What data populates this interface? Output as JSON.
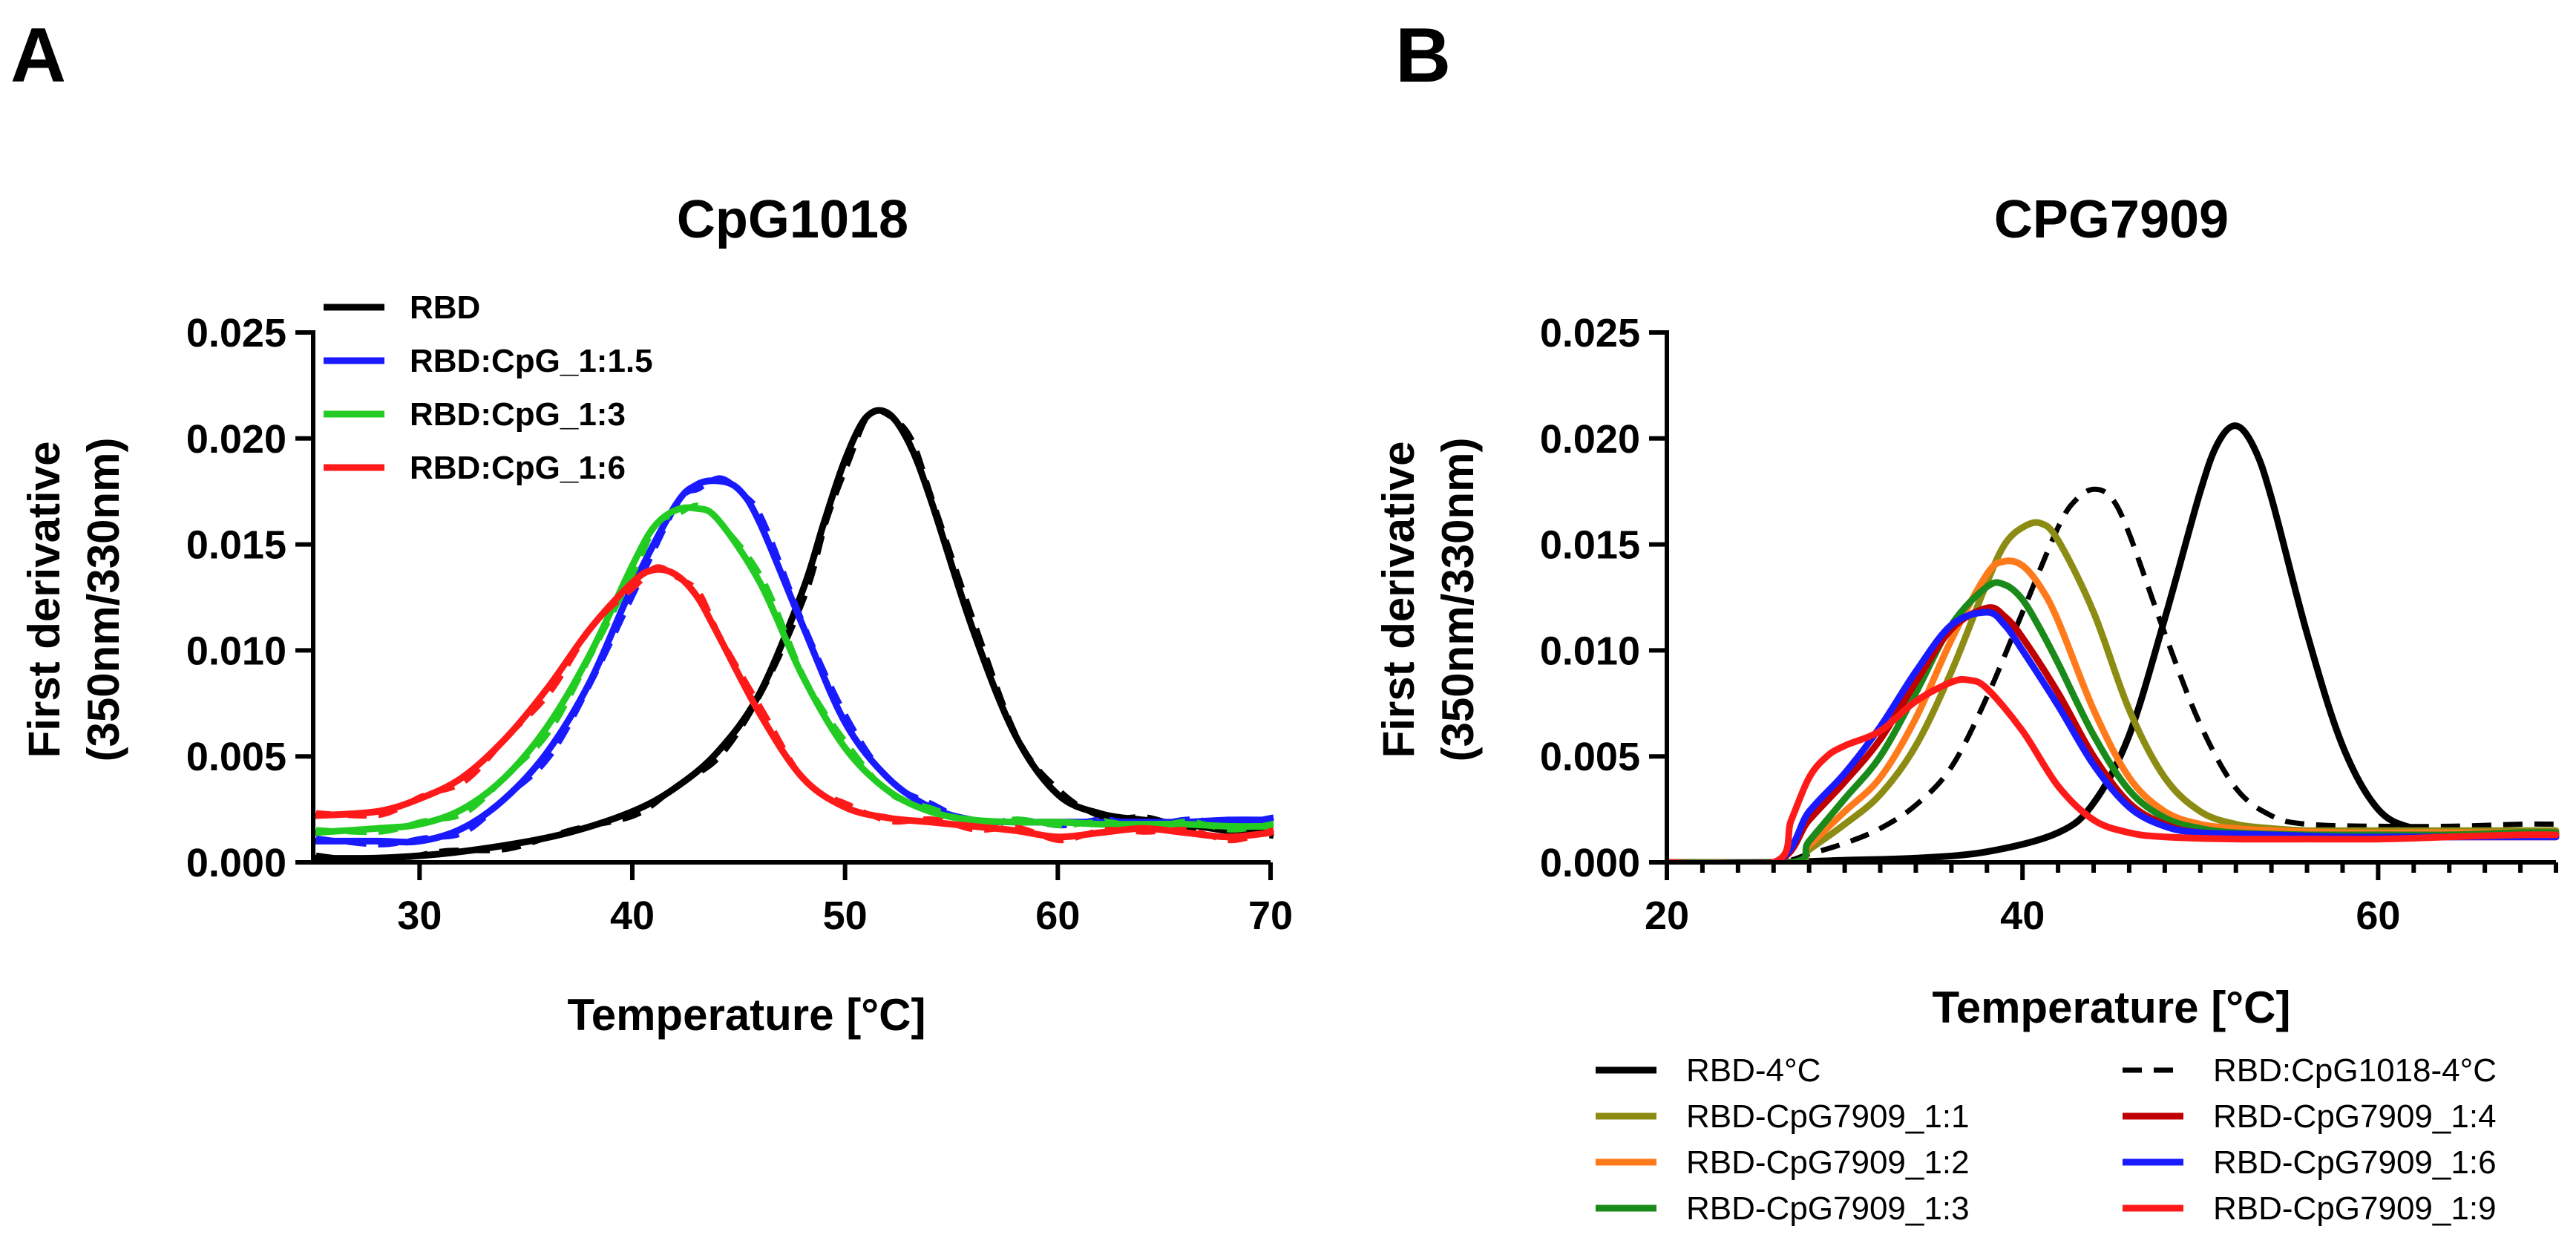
{
  "figure": {
    "panel_a_letter": "A",
    "panel_b_letter": "B"
  },
  "colors": {
    "black": "#000000",
    "blue": "#1a1aff",
    "green": "#22cc22",
    "red": "#ff1a1a",
    "olive": "#8c8c14",
    "orange": "#ff7a1a",
    "dark_green": "#1a8a1a",
    "dark_red": "#c00000"
  },
  "chart_data": [
    {
      "type": "line",
      "panel": "A",
      "title": "CpG1018",
      "xlabel": "Temperature [°C]",
      "ylabel_line1": "First derivative",
      "ylabel_line2": "(350nm/330nm)",
      "xlim": [
        25,
        70
      ],
      "ylim": [
        0,
        0.025
      ],
      "xticks": [
        30,
        40,
        50,
        60,
        70
      ],
      "yticks": [
        0.0,
        0.005,
        0.01,
        0.015,
        0.02,
        0.025
      ],
      "ytick_labels": [
        "0.000",
        "0.005",
        "0.010",
        "0.015",
        "0.020",
        "0.025"
      ],
      "xtick_labels": [
        "30",
        "40",
        "50",
        "60",
        "70"
      ],
      "legend_position": "top-left",
      "series": [
        {
          "name": "RBD",
          "color": "#000000",
          "replicate": true,
          "x": [
            25,
            28,
            31,
            34,
            37,
            40,
            42,
            44,
            46,
            48,
            49,
            50,
            51,
            52,
            53,
            54,
            56,
            58,
            60,
            62,
            64,
            66,
            68,
            70
          ],
          "y": [
            0.0002,
            0.0002,
            0.0004,
            0.0008,
            0.0014,
            0.0024,
            0.0035,
            0.0052,
            0.008,
            0.0128,
            0.016,
            0.019,
            0.021,
            0.0212,
            0.0198,
            0.0172,
            0.011,
            0.006,
            0.0032,
            0.0023,
            0.002,
            0.0018,
            0.0015,
            0.0014
          ]
        },
        {
          "name": "RBD:CpG_1:1.5",
          "color": "#1a1aff",
          "replicate": true,
          "x": [
            25,
            28,
            30,
            32,
            34,
            36,
            38,
            40,
            42,
            43,
            44,
            45,
            46,
            48,
            50,
            52,
            54,
            56,
            58,
            60,
            62,
            64,
            66,
            68,
            70
          ],
          "y": [
            0.001,
            0.001,
            0.001,
            0.0016,
            0.003,
            0.0052,
            0.0085,
            0.013,
            0.0168,
            0.0178,
            0.018,
            0.0176,
            0.016,
            0.0112,
            0.0066,
            0.004,
            0.0026,
            0.002,
            0.0019,
            0.0019,
            0.0019,
            0.0019,
            0.0019,
            0.002,
            0.002
          ]
        },
        {
          "name": "RBD:CpG_1:3",
          "color": "#22cc22",
          "replicate": true,
          "x": [
            25,
            28,
            30,
            32,
            34,
            36,
            38,
            40,
            41,
            42,
            43,
            44,
            46,
            48,
            50,
            52,
            54,
            56,
            58,
            60,
            62,
            64,
            66,
            68,
            70
          ],
          "y": [
            0.0014,
            0.0016,
            0.0018,
            0.0025,
            0.004,
            0.0064,
            0.0098,
            0.014,
            0.0158,
            0.0166,
            0.0167,
            0.0162,
            0.0132,
            0.0088,
            0.0054,
            0.0034,
            0.0024,
            0.002,
            0.0019,
            0.0019,
            0.0018,
            0.0018,
            0.0018,
            0.0017,
            0.0017
          ]
        },
        {
          "name": "RBD:CpG_1:6",
          "color": "#ff1a1a",
          "replicate": true,
          "x": [
            25,
            28,
            30,
            32,
            34,
            36,
            38,
            40,
            41,
            42,
            43,
            44,
            46,
            48,
            50,
            52,
            54,
            56,
            58,
            60,
            62,
            64,
            66,
            68,
            70
          ],
          "y": [
            0.0022,
            0.0024,
            0.003,
            0.004,
            0.0058,
            0.0082,
            0.011,
            0.0132,
            0.0138,
            0.0136,
            0.0126,
            0.0108,
            0.007,
            0.004,
            0.0026,
            0.0021,
            0.0019,
            0.0017,
            0.0015,
            0.0012,
            0.0014,
            0.0016,
            0.0014,
            0.0012,
            0.0014
          ]
        }
      ]
    },
    {
      "type": "line",
      "panel": "B",
      "title": "CPG7909",
      "xlabel": "Temperature [°C]",
      "ylabel_line1": "First derivative",
      "ylabel_line2": "(350nm/330nm)",
      "xlim": [
        20,
        70
      ],
      "ylim": [
        0,
        0.025
      ],
      "xticks": [
        20,
        40,
        60
      ],
      "xtick_labels": [
        "20",
        "40",
        "60"
      ],
      "minor_xtick_step": 2,
      "yticks": [
        0.0,
        0.005,
        0.01,
        0.015,
        0.02,
        0.025
      ],
      "ytick_labels": [
        "0.000",
        "0.005",
        "0.010",
        "0.015",
        "0.020",
        "0.025"
      ],
      "legend_position": "bottom",
      "series": [
        {
          "name": "RBD-4°C",
          "color": "#000000",
          "dashed": false,
          "x": [
            20,
            26,
            30,
            34,
            38,
            42,
            44,
            46,
            48,
            50,
            51,
            52,
            53,
            54,
            56,
            58,
            60,
            62,
            64,
            66,
            68,
            70
          ],
          "y": [
            0,
            0,
            0.0001,
            0.0002,
            0.0005,
            0.0014,
            0.0028,
            0.006,
            0.0115,
            0.0175,
            0.0198,
            0.0206,
            0.0196,
            0.0172,
            0.0108,
            0.0055,
            0.0025,
            0.0016,
            0.0014,
            0.0014,
            0.0014,
            0.0013
          ]
        },
        {
          "name": "RBD:CpG1018-4°C",
          "color": "#000000",
          "dashed": true,
          "x": [
            20,
            26,
            28,
            30,
            32,
            34,
            36,
            38,
            40,
            42,
            43,
            44,
            45,
            46,
            48,
            50,
            52,
            54,
            56,
            60,
            64,
            68,
            70
          ],
          "y": [
            0,
            0,
            0.0004,
            0.0009,
            0.0016,
            0.0027,
            0.0045,
            0.0078,
            0.0118,
            0.0158,
            0.0171,
            0.0176,
            0.0172,
            0.0155,
            0.0108,
            0.0065,
            0.0035,
            0.0022,
            0.0018,
            0.0017,
            0.0017,
            0.0018,
            0.0018
          ]
        },
        {
          "name": "RBD-CpG7909_1:1",
          "color": "#8c8c14",
          "dashed": false,
          "x": [
            20,
            27,
            28,
            30,
            32,
            34,
            36,
            38,
            39,
            40,
            41,
            42,
            44,
            46,
            48,
            50,
            52,
            54,
            56,
            60,
            64,
            68,
            70
          ],
          "y": [
            0,
            0,
            0.0006,
            0.0018,
            0.0032,
            0.0055,
            0.009,
            0.0132,
            0.015,
            0.0158,
            0.016,
            0.0152,
            0.0118,
            0.0072,
            0.004,
            0.0024,
            0.0018,
            0.0016,
            0.0015,
            0.0015,
            0.0015,
            0.0015,
            0.0015
          ]
        },
        {
          "name": "RBD-CpG7909_1:2",
          "color": "#ff7a1a",
          "dashed": false,
          "x": [
            20,
            27,
            28,
            30,
            32,
            34,
            36,
            38,
            39,
            40,
            41,
            42,
            44,
            46,
            48,
            50,
            52,
            54,
            58,
            62,
            66,
            70
          ],
          "y": [
            0,
            0,
            0.0008,
            0.0024,
            0.004,
            0.0068,
            0.0105,
            0.0136,
            0.0142,
            0.014,
            0.013,
            0.0114,
            0.0072,
            0.004,
            0.0024,
            0.0018,
            0.0016,
            0.0015,
            0.0014,
            0.0014,
            0.0014,
            0.0014
          ]
        },
        {
          "name": "RBD-CpG7909_1:3",
          "color": "#1a8a1a",
          "dashed": false,
          "x": [
            20,
            27,
            28,
            30,
            32,
            34,
            36,
            38,
            39,
            40,
            41,
            42,
            44,
            46,
            48,
            50,
            52,
            56,
            60,
            64,
            68,
            70
          ],
          "y": [
            0,
            0,
            0.001,
            0.003,
            0.005,
            0.008,
            0.0112,
            0.013,
            0.0131,
            0.0124,
            0.011,
            0.0094,
            0.006,
            0.0034,
            0.0021,
            0.0016,
            0.0014,
            0.0013,
            0.0013,
            0.0013,
            0.0014,
            0.0014
          ]
        },
        {
          "name": "RBD-CpG7909_1:4",
          "color": "#c00000",
          "dashed": false,
          "x": [
            20,
            26,
            28,
            30,
            32,
            34,
            36,
            38,
            39,
            40,
            42,
            44,
            46,
            48,
            50,
            54,
            58,
            62,
            66,
            70
          ],
          "y": [
            0,
            0,
            0.002,
            0.0038,
            0.0058,
            0.0085,
            0.011,
            0.012,
            0.0116,
            0.0106,
            0.008,
            0.005,
            0.0028,
            0.0018,
            0.0014,
            0.0013,
            0.0012,
            0.0012,
            0.0012,
            0.0012
          ]
        },
        {
          "name": "RBD-CpG7909_1:6",
          "color": "#1a1aff",
          "dashed": false,
          "x": [
            20,
            26,
            28,
            30,
            32,
            34,
            36,
            38,
            39,
            40,
            42,
            44,
            46,
            48,
            50,
            54,
            58,
            62,
            66,
            70
          ],
          "y": [
            0,
            0,
            0.0024,
            0.0042,
            0.0064,
            0.009,
            0.0112,
            0.0118,
            0.0112,
            0.01,
            0.0074,
            0.0046,
            0.0026,
            0.0017,
            0.0014,
            0.0013,
            0.0012,
            0.0012,
            0.0012,
            0.0012
          ]
        },
        {
          "name": "RBD-CpG7909_1:9",
          "color": "#ff1a1a",
          "dashed": false,
          "x": [
            20,
            26,
            27,
            28,
            29,
            30,
            32,
            34,
            36,
            37,
            38,
            40,
            42,
            44,
            46,
            48,
            52,
            56,
            60,
            64,
            68,
            70
          ],
          "y": [
            0,
            0,
            0.002,
            0.004,
            0.005,
            0.0055,
            0.0062,
            0.0076,
            0.0085,
            0.0086,
            0.0082,
            0.0062,
            0.0036,
            0.002,
            0.0014,
            0.0012,
            0.0011,
            0.0011,
            0.0011,
            0.0012,
            0.0013,
            0.0013
          ]
        }
      ]
    }
  ]
}
